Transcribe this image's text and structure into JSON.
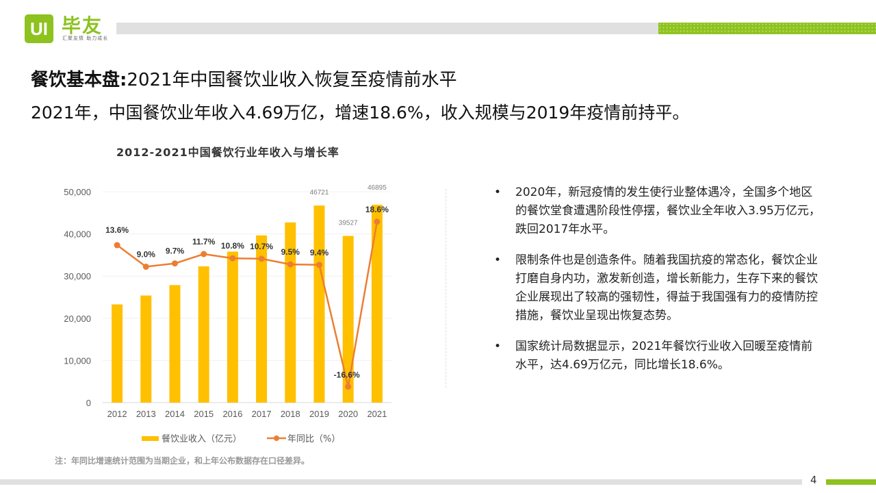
{
  "logo": {
    "mark": "UI",
    "name": "毕友",
    "slogan": "汇聚友情 助力成长"
  },
  "header": {
    "title_bold": "餐饮基本盘:",
    "title_rest": "2021年中国餐饮业收入恢复至疫情前水平",
    "subtitle": "2021年，中国餐饮业年收入4.69万亿，增速18.6%，收入规模与2019年疫情前持平。"
  },
  "bullets": [
    "2020年，新冠疫情的发生使行业整体遇冷，全国多个地区的餐饮堂食遭遇阶段性停摆，餐饮业全年收入3.95万亿元，跌回2017年水平。",
    "限制条件也是创造条件。随着我国抗疫的常态化，餐饮企业打磨自身内功，激发新创造，增长新能力，生存下来的餐饮企业展现出了较高的强韧性，得益于我国强有力的疫情防控措施，餐饮业呈现出恢复态势。",
    "国家统计局数据显示，2021年餐饮行业收入回暖至疫情前水平，达4.69万亿元，同比增长18.6%。"
  ],
  "bullet_symbol": "•",
  "note": "注：年同比增速统计范围为当期企业，和上年公布数据存在口径差异。",
  "page_number": "4",
  "colors": {
    "brand": "#8dc21f",
    "bar": "#ffc000",
    "line": "#ed7d31"
  },
  "chart_data": {
    "type": "bar",
    "title": "2012-2021中国餐饮行业年收入与增长率",
    "categories": [
      "2012",
      "2013",
      "2014",
      "2015",
      "2016",
      "2017",
      "2018",
      "2019",
      "2020",
      "2021"
    ],
    "series": [
      {
        "name": "餐饮业收入（亿元）",
        "type": "bar",
        "values": [
          23283,
          25392,
          27860,
          32310,
          35799,
          39644,
          42716,
          46721,
          39527,
          46895
        ],
        "labels": [
          "",
          "",
          "",
          "",
          "",
          "",
          "",
          "46721",
          "39527",
          "46895"
        ]
      },
      {
        "name": "年同比（%）",
        "type": "line",
        "axis": "secondary",
        "values": [
          13.6,
          9.0,
          9.7,
          11.7,
          10.8,
          10.7,
          9.5,
          9.4,
          -16.6,
          18.6
        ],
        "labels": [
          "13.6%",
          "9.0%",
          "9.7%",
          "11.7%",
          "10.8%",
          "10.7%",
          "9.5%",
          "9.4%",
          "-16.6%",
          "18.6%"
        ]
      }
    ],
    "yticks": [
      "0",
      "10,000",
      "20,000",
      "30,000",
      "40,000",
      "50,000"
    ],
    "ylim": [
      0,
      50000
    ],
    "y2lim": [
      -20,
      25
    ],
    "grid": true,
    "legend": "bottom"
  }
}
